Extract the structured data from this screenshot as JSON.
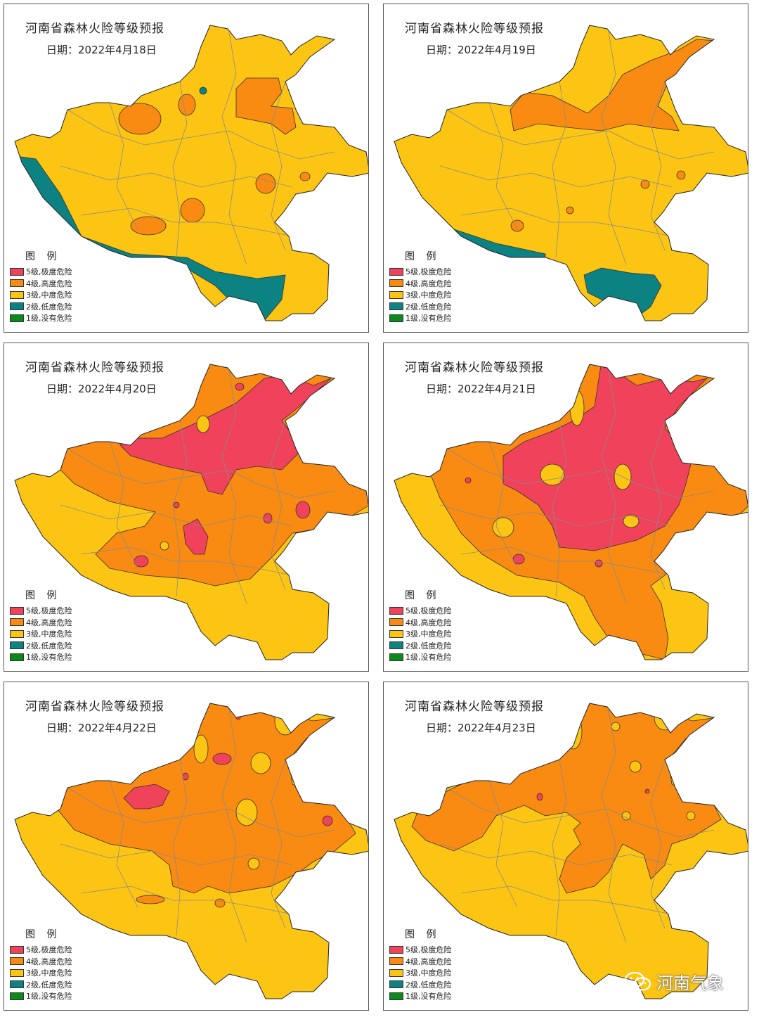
{
  "colors": {
    "level5": "#f0425a",
    "level4": "#f98a12",
    "level3": "#fcc514",
    "level2": "#0c8282",
    "level1": "#0a8a1a"
  },
  "legend": {
    "title": "图 例",
    "items": [
      {
        "label": "5级,极度危险",
        "color": "#f0425a"
      },
      {
        "label": "4级,高度危险",
        "color": "#f98a12"
      },
      {
        "label": "3级,中度危险",
        "color": "#fcc514"
      },
      {
        "label": "2级,低度危险",
        "color": "#0c8282"
      },
      {
        "label": "1级,没有危险",
        "color": "#0a8a1a"
      }
    ]
  },
  "panels": [
    {
      "title": "河南省森林火险等级预报",
      "date": "日期：2022年4月18日"
    },
    {
      "title": "河南省森林火险等级预报",
      "date": "日期：2022年4月19日"
    },
    {
      "title": "河南省森林火险等级预报",
      "date": "日期：2022年4月20日"
    },
    {
      "title": "河南省森林火险等级预报",
      "date": "日期：2022年4月21日"
    },
    {
      "title": "河南省森林火险等级预报",
      "date": "日期：2022年4月22日"
    },
    {
      "title": "河南省森林火险等级预报",
      "date": "日期：2022年4月23日"
    }
  ],
  "watermark": {
    "text": "河南气象",
    "icon": "wechat-icon"
  }
}
